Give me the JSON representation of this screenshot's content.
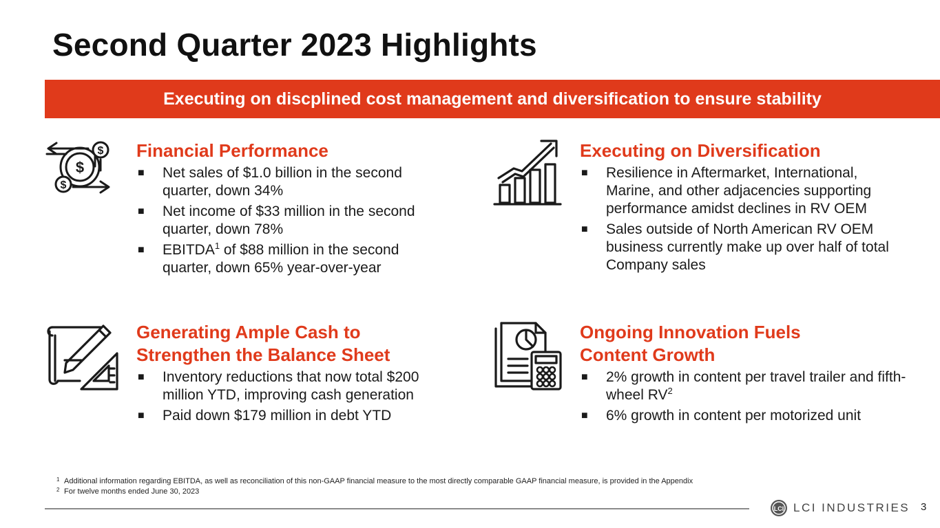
{
  "title": "Second Quarter 2023 Highlights",
  "banner": "Executing on discplined cost management and diversification to ensure stability",
  "colors": {
    "accent": "#E03A1B",
    "text": "#1a1a1a",
    "rule": "#8a8a8a"
  },
  "sections": {
    "financial": {
      "icon": "money-cycle-icon",
      "heading": "Financial Performance",
      "bullets": [
        "Net sales of $1.0 billion in the second quarter, down 34%",
        "Net income of $33 million in the second quarter, down 78%"
      ],
      "ebitda": {
        "prefix": "EBITDA",
        "sup": "1",
        "suffix": " of $88 million in the second quarter, down 65% year-over-year"
      }
    },
    "diversification": {
      "icon": "growth-chart-icon",
      "heading": "Executing on Diversification",
      "bullets": [
        "Resilience in Aftermarket, International, Marine, and other adjacencies supporting performance amidst declines in RV OEM",
        "Sales outside of North American RV OEM business currently make up over half of total Company sales"
      ]
    },
    "cash": {
      "icon": "blueprint-pencil-icon",
      "heading_line1": "Generating Ample Cash to",
      "heading_line2": "Strengthen the Balance Sheet",
      "bullets": [
        "Inventory reductions that now total $200 million YTD, improving cash generation",
        "Paid down $179 million in debt YTD"
      ]
    },
    "innovation": {
      "icon": "report-calculator-icon",
      "heading_line1": "Ongoing Innovation Fuels",
      "heading_line2": "Content Growth",
      "rv": {
        "prefix": "2% growth in content per travel trailer and fifth-wheel RV",
        "sup": "2"
      },
      "bullets": [
        "6% growth in content per motorized unit"
      ]
    }
  },
  "bullet_glyph": "■",
  "footnotes": [
    {
      "num": "1",
      "text": "Additional information regarding EBITDA, as well as reconciliation of this non-GAAP financial measure to the most directly comparable GAAP financial measure, is provided in the Appendix"
    },
    {
      "num": "2",
      "text": "For twelve months ended June 30, 2023"
    }
  ],
  "logo": {
    "mark": "LCI",
    "text": "LCI INDUSTRIES"
  },
  "page_number": "3"
}
